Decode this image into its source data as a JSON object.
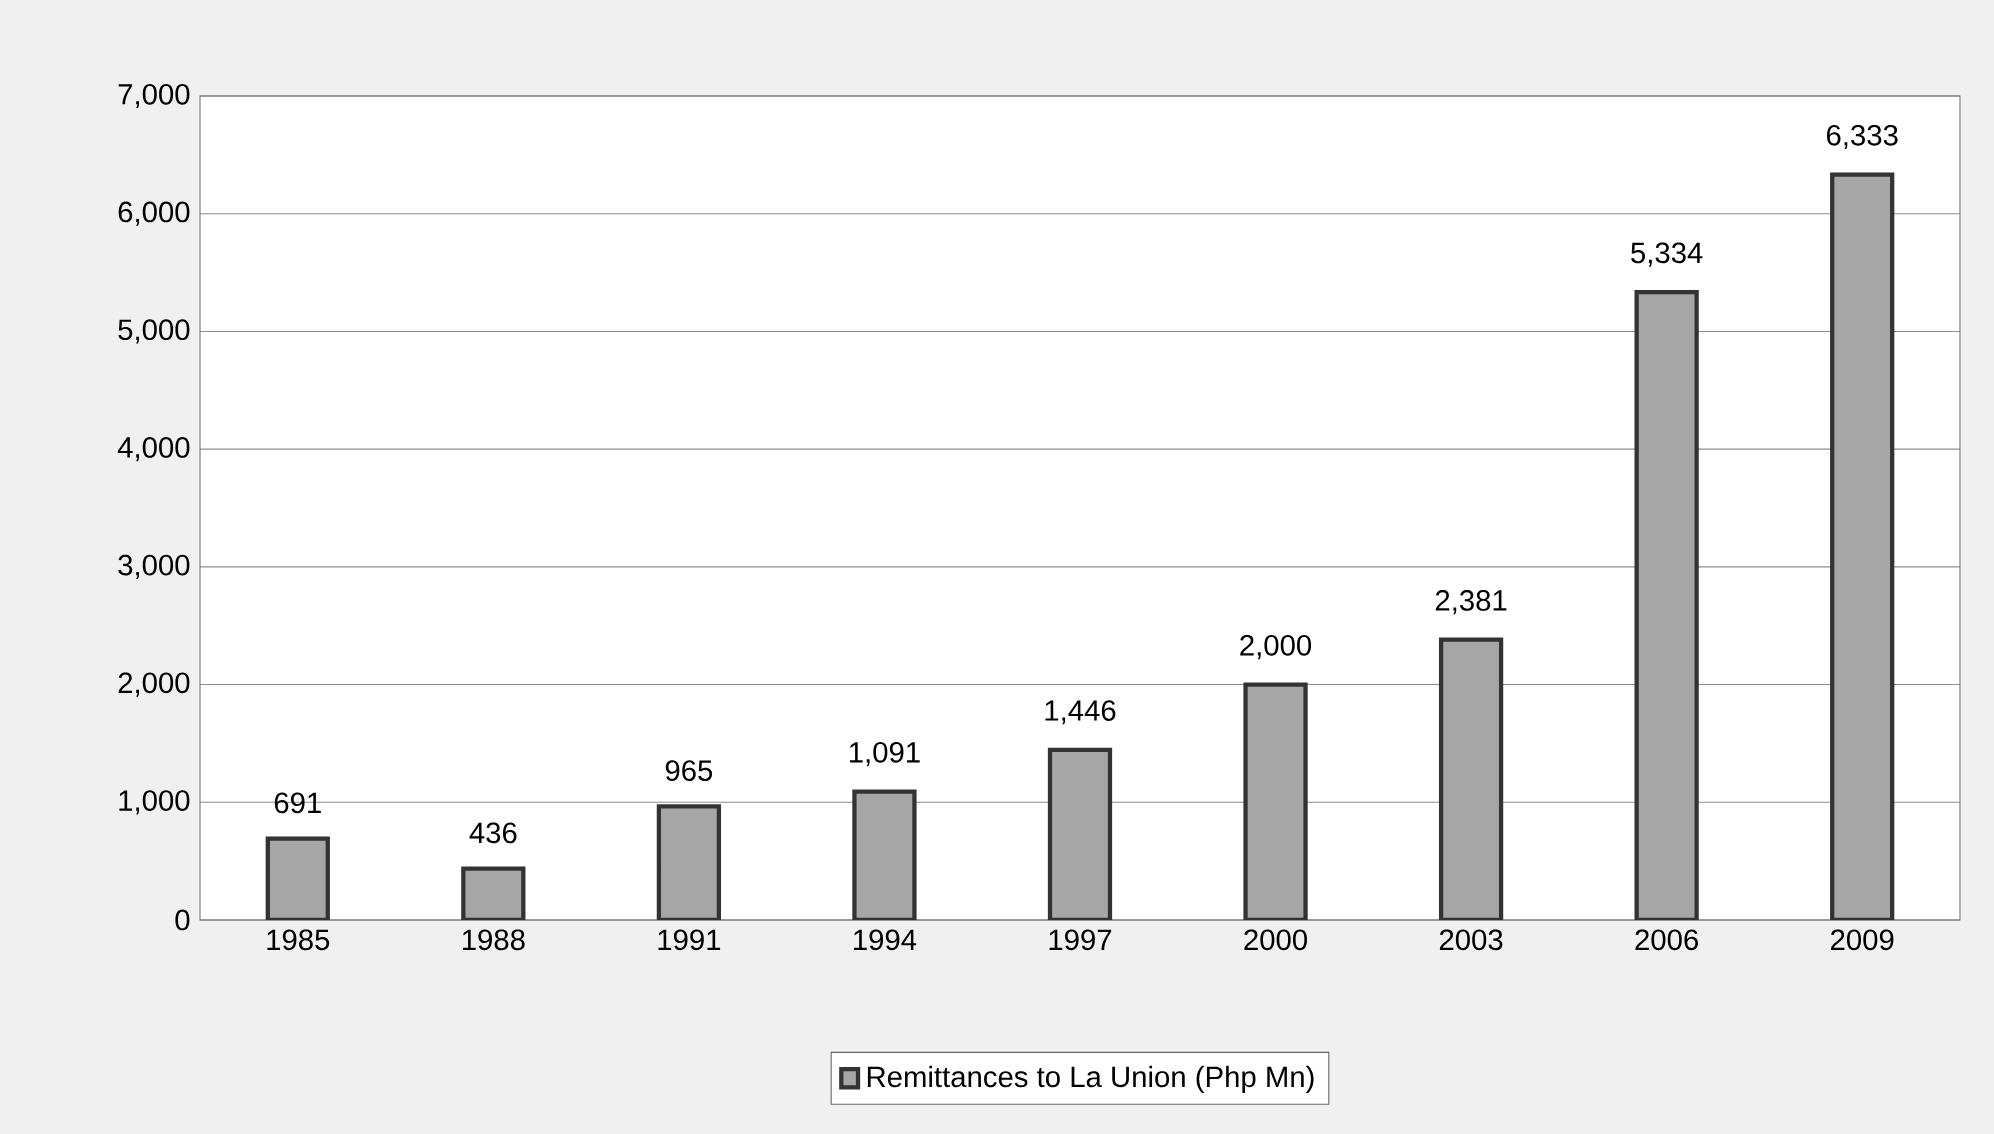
{
  "chart_data": {
    "type": "bar",
    "categories": [
      "1985",
      "1988",
      "1991",
      "1994",
      "1997",
      "2000",
      "2003",
      "2006",
      "2009"
    ],
    "series": [
      {
        "name": "Remittances to La Union (Php Mn)",
        "color": "#a6a6a6",
        "values": [
          691,
          436,
          965,
          1091,
          1446,
          2000,
          2381,
          5334,
          6333
        ],
        "value_labels": [
          "691",
          "436",
          "965",
          "1,091",
          "1,446",
          "2,000",
          "2,381",
          "5,334",
          "6,333"
        ]
      }
    ],
    "ylim": [
      0,
      7000
    ],
    "yticks": [
      0,
      {
        "value": 1000,
        "label": "1,000"
      },
      {
        "value": 2000,
        "label": "2,000"
      },
      {
        "value": 3000,
        "label": "3,000"
      },
      {
        "value": 4000,
        "label": "4,000"
      },
      {
        "value": 5000,
        "label": "5,000"
      },
      {
        "value": 6000,
        "label": "6,000"
      },
      {
        "value": 7000,
        "label": "7,000"
      }
    ],
    "grid": "y",
    "legend": "bottom"
  }
}
